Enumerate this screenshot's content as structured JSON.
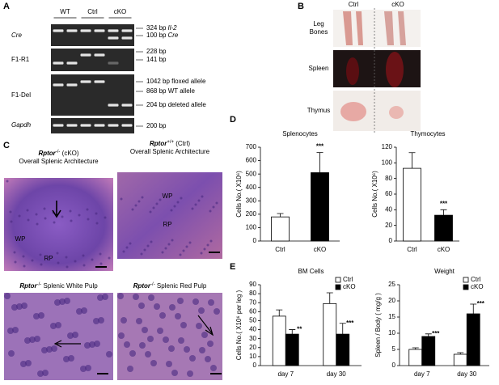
{
  "panels": {
    "a": {
      "letter": "A",
      "groups": [
        "WT",
        "Ctrl",
        "cKO"
      ],
      "rows": [
        "Cre",
        "F1-R1",
        "F1-Del",
        "Gapdh"
      ],
      "bp_labels": [
        {
          "size": "324 bp",
          "note": "Il-2"
        },
        {
          "size": "100 bp",
          "note": "Cre"
        },
        {
          "size": "228 bp"
        },
        {
          "size": "141 bp"
        },
        {
          "size": "1042 bp floxed allele"
        },
        {
          "size": "868 bp WT allele"
        },
        {
          "size": "204 bp deleted allele"
        },
        {
          "size": "200 bp"
        }
      ]
    },
    "b": {
      "letter": "B",
      "columns": [
        "Ctrl",
        "cKO"
      ],
      "rows": [
        [
          "Leg",
          "Bones"
        ],
        [
          "Spleen"
        ],
        [
          "Thymus"
        ]
      ]
    },
    "c": {
      "letter": "C",
      "images": [
        {
          "gene": "Rptor",
          "genotype": "-/-",
          "note": " (cKO)",
          "line2": "Overall Splenic Architecture",
          "regions": [
            "WP",
            "RP"
          ]
        },
        {
          "gene": "Rptor",
          "genotype": "+/+",
          "note": " (Ctrl)",
          "line2": "Overall Splenic Architecture",
          "regions": [
            "WP",
            "RP"
          ]
        },
        {
          "gene": "Rptor",
          "genotype": "-/-",
          "note": " Splenic White Pulp"
        },
        {
          "gene": "Rptor",
          "genotype": "-/-",
          "note": " Splenic Red Pulp"
        }
      ]
    },
    "d": {
      "letter": "D"
    },
    "e": {
      "letter": "E"
    }
  },
  "chart_data": [
    {
      "type": "bar",
      "title": "Splenocytes",
      "y_label": "Cells No.( X10⁶)",
      "categories": [
        "Ctrl",
        "cKO"
      ],
      "values": [
        180,
        510
      ],
      "errors": [
        25,
        150
      ],
      "colors": [
        "#ffffff",
        "#000000"
      ],
      "significance": [
        null,
        "***"
      ],
      "ylim": [
        0,
        700
      ],
      "yticks": [
        0,
        100,
        200,
        300,
        400,
        500,
        600,
        700
      ]
    },
    {
      "type": "bar",
      "title": "Thymocytes",
      "y_label": "Cells No.( X10⁶)",
      "categories": [
        "Ctrl",
        "cKO"
      ],
      "values": [
        93,
        33
      ],
      "errors": [
        20,
        7
      ],
      "colors": [
        "#ffffff",
        "#000000"
      ],
      "significance": [
        null,
        "***"
      ],
      "ylim": [
        0,
        120
      ],
      "yticks": [
        0,
        20,
        40,
        60,
        80,
        100,
        120
      ]
    },
    {
      "type": "bar",
      "title": "BM Cells",
      "y_label": "Cells No.( X10⁶ per leg )",
      "categories": [
        "day 7",
        "day 30"
      ],
      "series": [
        {
          "name": "Ctrl",
          "color": "#ffffff",
          "values": [
            55,
            69
          ],
          "errors": [
            7,
            12
          ]
        },
        {
          "name": "cKO",
          "color": "#000000",
          "values": [
            35,
            35
          ],
          "errors": [
            5,
            12
          ],
          "significance": [
            "**",
            "***"
          ]
        }
      ],
      "ylim": [
        0,
        90
      ],
      "yticks": [
        0,
        10,
        20,
        30,
        40,
        50,
        60,
        70,
        80,
        90
      ]
    },
    {
      "type": "bar",
      "title": "Weight",
      "y_label": "Spleen / Body ( mg/g )",
      "categories": [
        "day 7",
        "day 30"
      ],
      "series": [
        {
          "name": "Ctrl",
          "color": "#ffffff",
          "values": [
            5,
            3.5
          ],
          "errors": [
            0.5,
            0.5
          ]
        },
        {
          "name": "cKO",
          "color": "#000000",
          "values": [
            9,
            16
          ],
          "errors": [
            0.8,
            3
          ],
          "significance": [
            "***",
            "***"
          ]
        }
      ],
      "ylim": [
        0,
        25
      ],
      "yticks": [
        0,
        5,
        10,
        15,
        20,
        25
      ]
    }
  ]
}
